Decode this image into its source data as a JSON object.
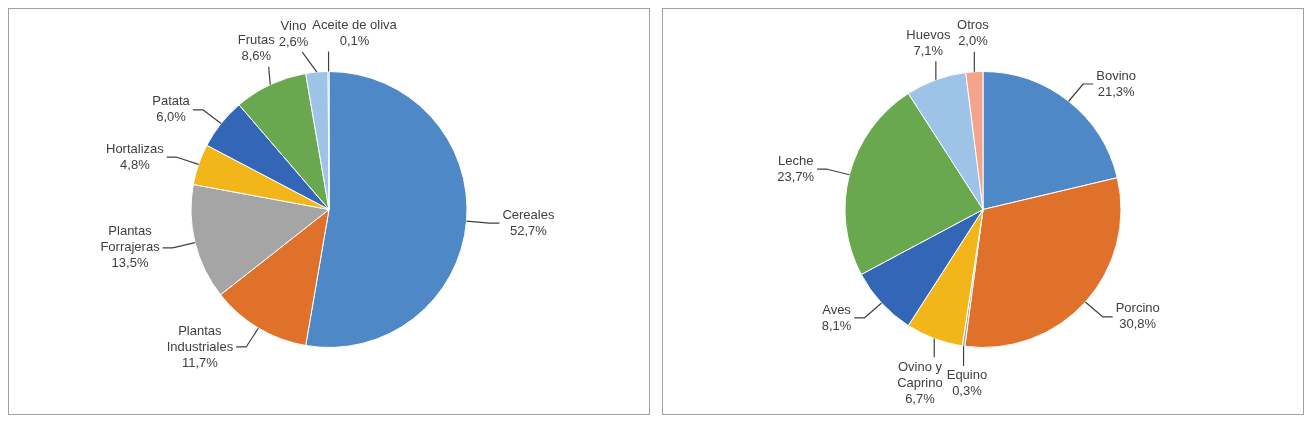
{
  "chart_data": [
    {
      "type": "pie",
      "categories": [
        "Cereales",
        "Plantas Industriales",
        "Plantas Forrajeras",
        "Hortalizas",
        "Patata",
        "Frutas",
        "Vino",
        "Aceite de oliva"
      ],
      "values": [
        52.7,
        11.7,
        13.5,
        4.8,
        6.0,
        8.6,
        2.6,
        0.1
      ],
      "value_labels": [
        "52,7%",
        "11,7%",
        "13,5%",
        "4,8%",
        "6,0%",
        "8,6%",
        "2,6%",
        "0,1%"
      ],
      "colors": [
        "#4f88c6",
        "#e0712b",
        "#a5a5a5",
        "#f2b51a",
        "#3466b8",
        "#6aa84f",
        "#9dc3e6",
        "#2a5d90"
      ],
      "legend": false
    },
    {
      "type": "pie",
      "categories": [
        "Bovino",
        "Porcino",
        "Equino",
        "Ovino y Caprino",
        "Aves",
        "Leche",
        "Huevos",
        "Otros"
      ],
      "values": [
        21.3,
        30.8,
        0.3,
        6.7,
        8.1,
        23.7,
        7.1,
        2.0
      ],
      "value_labels": [
        "21,3%",
        "30,8%",
        "0,3%",
        "6,7%",
        "8,1%",
        "23,7%",
        "7,1%",
        "2,0%"
      ],
      "colors": [
        "#4f88c6",
        "#e0712b",
        "#a5a5a5",
        "#f2b51a",
        "#3466b8",
        "#6aa84f",
        "#9dc3e6",
        "#f4a48a"
      ],
      "legend": false
    }
  ]
}
